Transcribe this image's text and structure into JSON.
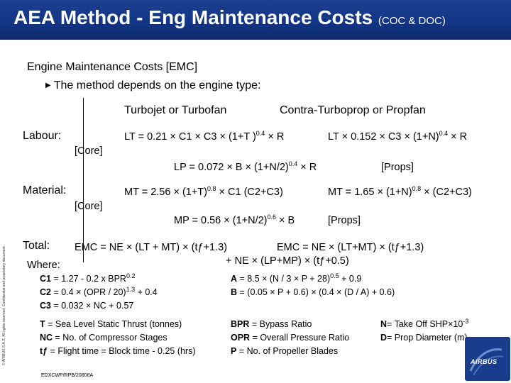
{
  "header": {
    "title": "AEA Method - Eng Maintenance Costs",
    "subtitle": "(COC & DOC)"
  },
  "section_title": "Engine Maintenance Costs [EMC]",
  "bullet": "The method depends on the engine type:",
  "columns": {
    "turbo": "Turbojet or Turbofan",
    "prop": "Contra-Turboprop or Propfan"
  },
  "labour": {
    "label": "Labour:",
    "sub": "[Core]",
    "turbo_formula": {
      "a": "LT = 0.21 × C1 × C3 × (1+T )",
      "exp": "0.4",
      "b": " × R"
    },
    "prop_formula": {
      "a": "LT × 0.152 × C3 × (1+N)",
      "exp": "0.4",
      "b": " × R"
    },
    "props_formula": {
      "a": "LP = 0.072 × B × (1+N/2)",
      "exp": "0.4",
      "b": " × R"
    },
    "props_tag": "[Props]"
  },
  "material": {
    "label": "Material:",
    "sub": "[Core]",
    "turbo_formula": {
      "a": "MT = 2.56 × (1+T)",
      "exp": "0.8",
      "b": " × C1 (C2+C3)"
    },
    "prop_formula": {
      "a": "MT = 1.65 × (1+N)",
      "exp": "0.8",
      "b": " × (C2+C3)"
    },
    "props_formula": {
      "a": "MP = 0.56 × (1+N/2)",
      "exp": "0.6",
      "b": " × B"
    },
    "props_tag": "[Props]"
  },
  "total": {
    "label": "Total:",
    "turbo_formula": "EMC = NE × (LT + MT) × (tƒ+1.3)",
    "prop_formula_1": "EMC = NE × (LT+MT)  ×  (tƒ+1.3)",
    "prop_formula_2": "+ NE × (LP+MP) × (tƒ+0.5)"
  },
  "where": "Where:",
  "coefficients": {
    "c1": {
      "key": "C1",
      "a": " = 1.27 - 0.2 x BPR",
      "exp": "0.2"
    },
    "c2": {
      "key": "C2",
      "a": " = 0.4 × (OPR / 20)",
      "exp": "1.3",
      "b": "  + 0.4"
    },
    "c3": {
      "key": "C3",
      "a": " = 0.032 × NC + 0.57"
    },
    "a": {
      "key": "A",
      "a": " = 8.5 × (N / 3 × P  +  28)",
      "exp": "0.5",
      "b": "  +  0.9"
    },
    "b": {
      "key": "B",
      "a": " = (0.05 × P + 0.6) × (0.4 × (D / A) + 0.6)"
    }
  },
  "definitions": {
    "t": {
      "key": "T",
      "text": " = Sea Level Static Thrust (tonnes)"
    },
    "nc": {
      "key": "NC",
      "text": " = No. of Compressor Stages"
    },
    "tf": {
      "key": "tƒ",
      "text": " = Flight time = Block time - 0.25 (hrs)"
    },
    "bpr": {
      "key": "BPR",
      "text": " = Bypass Ratio"
    },
    "opr": {
      "key": "OPR",
      "text": " = Overall Pressure Ratio"
    },
    "p": {
      "key": "P",
      "text": " = No. of Propeller Blades"
    },
    "n": {
      "key": "N",
      "text": "= Take Off SHP×10",
      "exp": "-3"
    },
    "d": {
      "key": "D",
      "text": "= Prop Diameter (m)"
    }
  },
  "footer_code": "EDXCWP/RPB/20808A",
  "side_notice": "© AIRBUS S.A.S. All rights reserved. Confidential and proprietary document.",
  "logo_text": "AIRBUS",
  "colors": {
    "header_bg": "#123585",
    "logo_bg": "#1a3c8c"
  }
}
